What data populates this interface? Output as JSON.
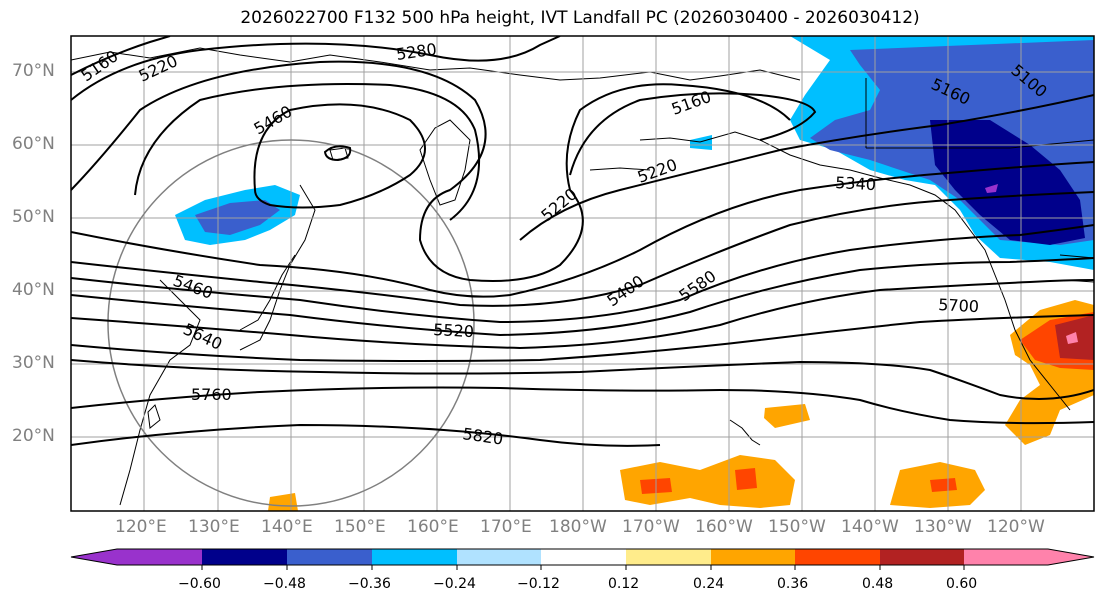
{
  "title": "2026022700 F132 500 hPa height, IVT Landfall PC (2026030400 - 2026030412)",
  "lat_labels": [
    "70°N",
    "60°N",
    "50°N",
    "40°N",
    "30°N",
    "20°N"
  ],
  "lon_labels": [
    "120°E",
    "130°E",
    "140°E",
    "150°E",
    "160°E",
    "170°E",
    "180°W",
    "170°W",
    "160°W",
    "150°W",
    "140°W",
    "130°W",
    "120°W"
  ],
  "contour_labels": [
    "5160",
    "5220",
    "5280",
    "5460",
    "5160",
    "5220",
    "5220",
    "5340",
    "5160",
    "5100",
    "5460",
    "5400",
    "5580",
    "5640",
    "5520",
    "5700",
    "5760",
    "5820"
  ],
  "colorbar": {
    "ticks": [
      "−0.60",
      "−0.48",
      "−0.36",
      "−0.24",
      "−0.12",
      "0.12",
      "0.24",
      "0.36",
      "0.48",
      "0.60"
    ],
    "colors": [
      "#9932CC",
      "#00008B",
      "#3A5FCD",
      "#00BFFF",
      "#B0E2FF",
      "#FFFFFF",
      "#FFEC8B",
      "#FFA500",
      "#FF4500",
      "#B22222",
      "#FF82AB"
    ]
  },
  "colors": {
    "frame": "#000000",
    "grid": "#a0a0a0",
    "label_gray": "#808080"
  }
}
